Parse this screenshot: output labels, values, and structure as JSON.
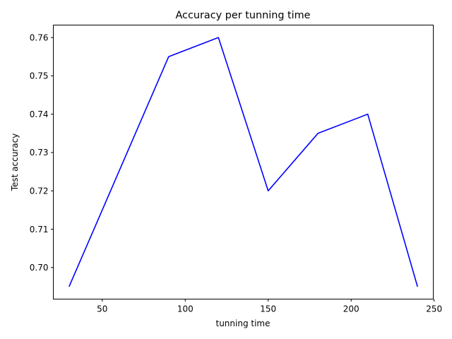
{
  "chart_data": {
    "type": "line",
    "title": "Accuracy per tunning time",
    "xlabel": "tunning time",
    "ylabel": "Test accuracy",
    "xlim": [
      20.5,
      249.5
    ],
    "ylim": [
      0.69175,
      0.76325
    ],
    "xticks": [
      50,
      100,
      150,
      200,
      250
    ],
    "xtick_labels": [
      "50",
      "100",
      "150",
      "200",
      "250"
    ],
    "yticks": [
      0.7,
      0.71,
      0.72,
      0.73,
      0.74,
      0.75,
      0.76
    ],
    "ytick_labels": [
      "0.70",
      "0.71",
      "0.72",
      "0.73",
      "0.74",
      "0.75",
      "0.76"
    ],
    "grid": false,
    "series": [
      {
        "color": "#0000ff",
        "x": [
          30,
          90,
          120,
          150,
          180,
          210,
          240
        ],
        "y": [
          0.695,
          0.755,
          0.76,
          0.72,
          0.735,
          0.74,
          0.695
        ]
      }
    ]
  }
}
